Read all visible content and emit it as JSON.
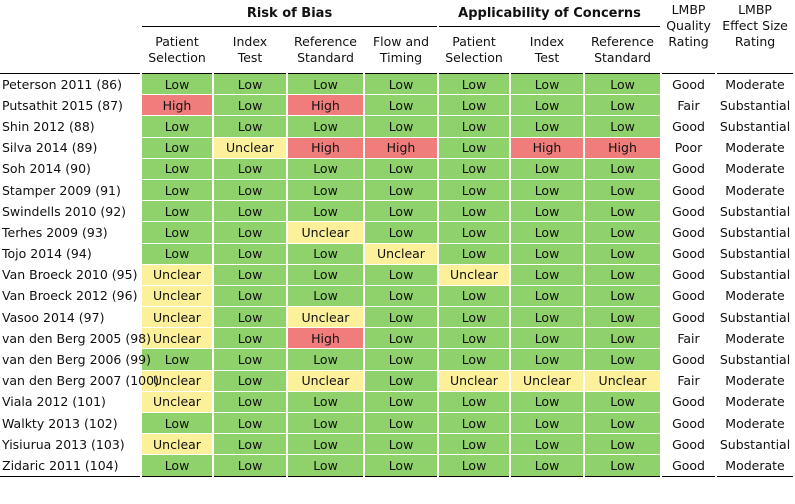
{
  "group_headers": {
    "risk_of_bias": "Risk of Bias",
    "applicability": "Applicability of Concerns"
  },
  "column_headers": {
    "rob_patient_selection": [
      "Patient",
      "Selection"
    ],
    "rob_index_test": [
      "Index",
      "Test"
    ],
    "rob_reference_standard": [
      "Reference",
      "Standard"
    ],
    "rob_flow_timing": [
      "Flow and",
      "Timing"
    ],
    "app_patient_selection": [
      "Patient",
      "Selection"
    ],
    "app_index_test": [
      "Index",
      "Test"
    ],
    "app_reference_standard": [
      "Reference",
      "Standard"
    ],
    "lmbp_quality": [
      "LMBP",
      "Quality",
      "Rating"
    ],
    "lmbp_effect": [
      "LMBP",
      "Effect Size",
      "Rating"
    ]
  },
  "colors": {
    "Low": "#8fd16a",
    "Unclear": "#fcf09a",
    "High": "#f07c7c"
  },
  "rows": [
    {
      "study": "Peterson 2011 (86)",
      "rob": [
        "Low",
        "Low",
        "Low",
        "Low"
      ],
      "app": [
        "Low",
        "Low",
        "Low"
      ],
      "quality": "Good",
      "effect": "Moderate"
    },
    {
      "study": "Putsathit 2015 (87)",
      "rob": [
        "High",
        "Low",
        "High",
        "Low"
      ],
      "app": [
        "Low",
        "Low",
        "Low"
      ],
      "quality": "Fair",
      "effect": "Substantial"
    },
    {
      "study": "Shin 2012 (88)",
      "rob": [
        "Low",
        "Low",
        "Low",
        "Low"
      ],
      "app": [
        "Low",
        "Low",
        "Low"
      ],
      "quality": "Good",
      "effect": "Substantial"
    },
    {
      "study": "Silva 2014 (89)",
      "rob": [
        "Low",
        "Unclear",
        "High",
        "High"
      ],
      "app": [
        "Low",
        "High",
        "High"
      ],
      "quality": "Poor",
      "effect": "Moderate"
    },
    {
      "study": "Soh 2014 (90)",
      "rob": [
        "Low",
        "Low",
        "Low",
        "Low"
      ],
      "app": [
        "Low",
        "Low",
        "Low"
      ],
      "quality": "Good",
      "effect": "Moderate"
    },
    {
      "study": "Stamper 2009 (91)",
      "rob": [
        "Low",
        "Low",
        "Low",
        "Low"
      ],
      "app": [
        "Low",
        "Low",
        "Low"
      ],
      "quality": "Good",
      "effect": "Moderate"
    },
    {
      "study": "Swindells 2010 (92)",
      "rob": [
        "Low",
        "Low",
        "Low",
        "Low"
      ],
      "app": [
        "Low",
        "Low",
        "Low"
      ],
      "quality": "Good",
      "effect": "Substantial"
    },
    {
      "study": "Terhes 2009 (93)",
      "rob": [
        "Low",
        "Low",
        "Unclear",
        "Low"
      ],
      "app": [
        "Low",
        "Low",
        "Low"
      ],
      "quality": "Good",
      "effect": "Substantial"
    },
    {
      "study": "Tojo 2014 (94)",
      "rob": [
        "Low",
        "Low",
        "Low",
        "Unclear"
      ],
      "app": [
        "Low",
        "Low",
        "Low"
      ],
      "quality": "Good",
      "effect": "Substantial"
    },
    {
      "study": "Van Broeck 2010 (95)",
      "rob": [
        "Unclear",
        "Low",
        "Low",
        "Low"
      ],
      "app": [
        "Unclear",
        "Low",
        "Low"
      ],
      "quality": "Good",
      "effect": "Substantial"
    },
    {
      "study": "Van Broeck 2012 (96)",
      "rob": [
        "Unclear",
        "Low",
        "Low",
        "Low"
      ],
      "app": [
        "Low",
        "Low",
        "Low"
      ],
      "quality": "Good",
      "effect": "Moderate"
    },
    {
      "study": "Vasoo 2014 (97)",
      "rob": [
        "Unclear",
        "Low",
        "Unclear",
        "Low"
      ],
      "app": [
        "Low",
        "Low",
        "Low"
      ],
      "quality": "Good",
      "effect": "Substantial"
    },
    {
      "study": "van den Berg 2005 (98)",
      "rob": [
        "Unclear",
        "Low",
        "High",
        "Low"
      ],
      "app": [
        "Low",
        "Low",
        "Low"
      ],
      "quality": "Fair",
      "effect": "Moderate"
    },
    {
      "study": "van den Berg 2006 (99)",
      "rob": [
        "Low",
        "Low",
        "Low",
        "Low"
      ],
      "app": [
        "Low",
        "Low",
        "Low"
      ],
      "quality": "Good",
      "effect": "Substantial"
    },
    {
      "study": "van den Berg 2007 (100)",
      "rob": [
        "Unclear",
        "Low",
        "Unclear",
        "Low"
      ],
      "app": [
        "Unclear",
        "Unclear",
        "Unclear"
      ],
      "quality": "Fair",
      "effect": "Moderate"
    },
    {
      "study": "Viala 2012 (101)",
      "rob": [
        "Unclear",
        "Low",
        "Low",
        "Low"
      ],
      "app": [
        "Low",
        "Low",
        "Low"
      ],
      "quality": "Good",
      "effect": "Moderate"
    },
    {
      "study": "Walkty 2013 (102)",
      "rob": [
        "Low",
        "Low",
        "Low",
        "Low"
      ],
      "app": [
        "Low",
        "Low",
        "Low"
      ],
      "quality": "Good",
      "effect": "Moderate"
    },
    {
      "study": "Yisiurua 2013 (103)",
      "rob": [
        "Unclear",
        "Low",
        "Low",
        "Low"
      ],
      "app": [
        "Low",
        "Low",
        "Low"
      ],
      "quality": "Good",
      "effect": "Substantial"
    },
    {
      "study": "Zidaric 2011 (104)",
      "rob": [
        "Low",
        "Low",
        "Low",
        "Low"
      ],
      "app": [
        "Low",
        "Low",
        "Low"
      ],
      "quality": "Good",
      "effect": "Moderate"
    }
  ]
}
